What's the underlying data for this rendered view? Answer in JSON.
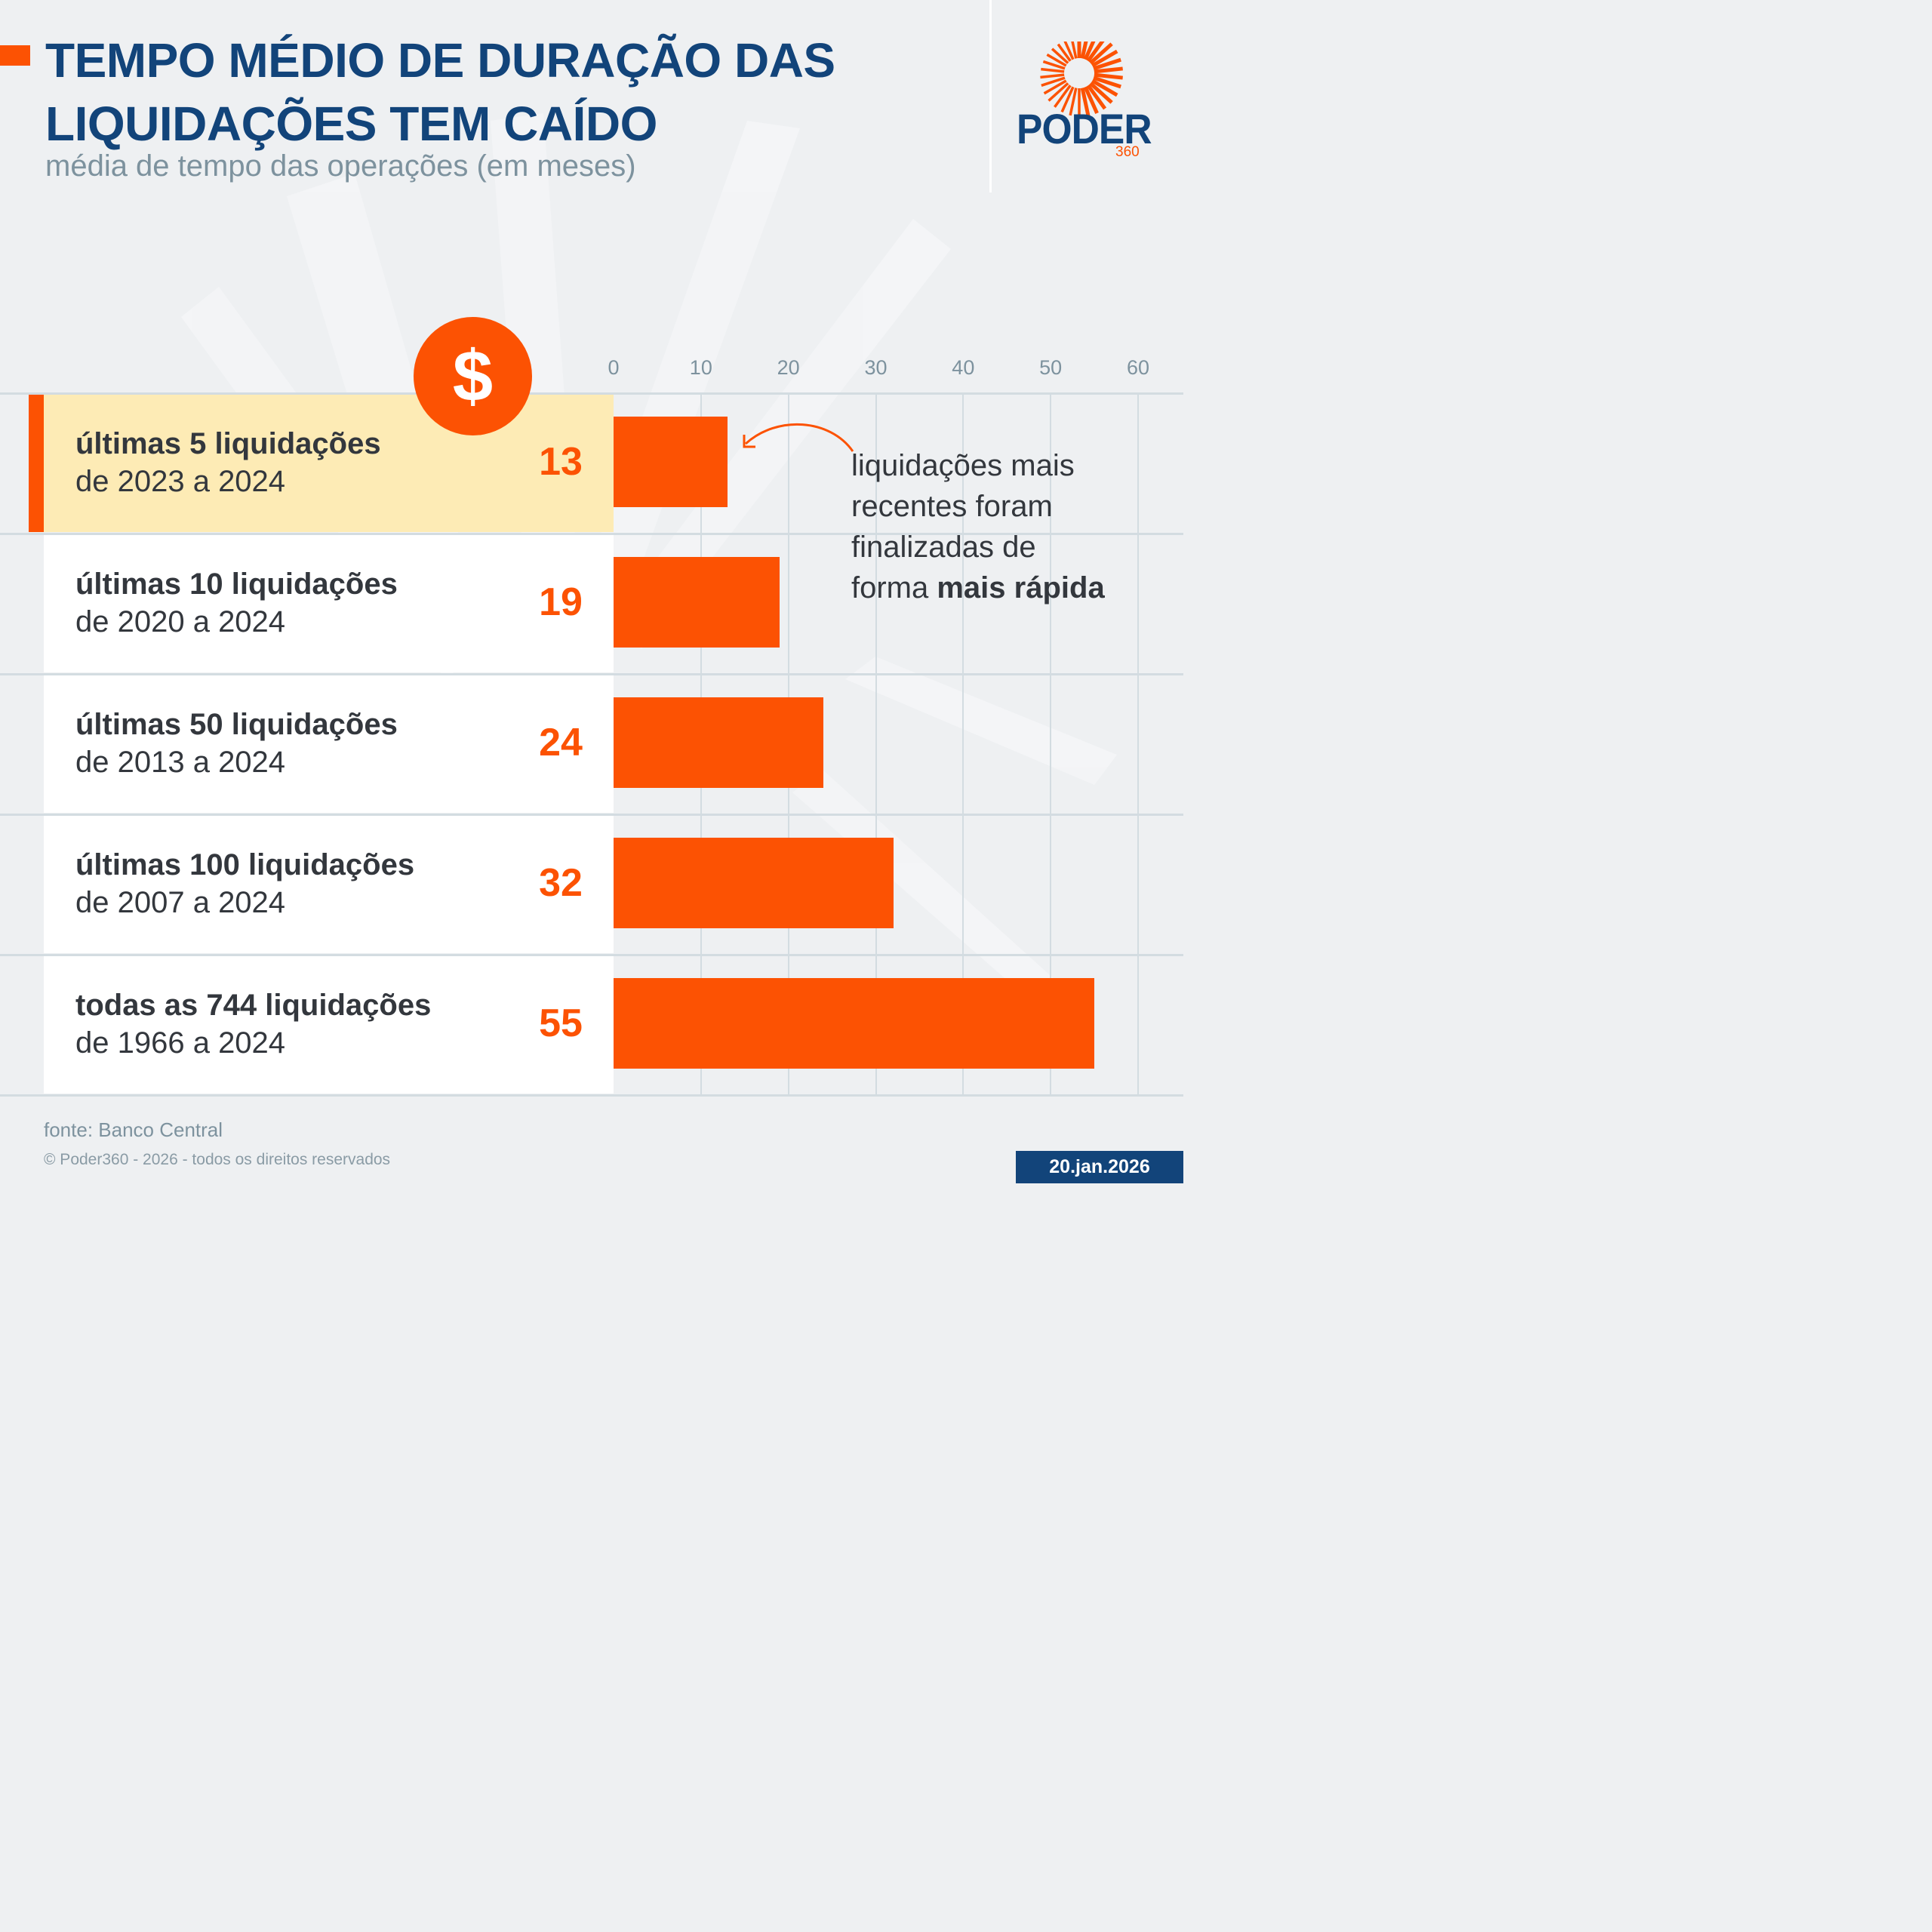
{
  "header": {
    "title_line1": "TEMPO MÉDIO DE DURAÇÃO DAS",
    "title_line2": "LIQUIDAÇÕES TEM CAÍDO",
    "subtitle": "média de tempo das operações (em meses)"
  },
  "logo": {
    "word": "PODER",
    "number": "360",
    "icon": "sunburst-icon"
  },
  "icons": {
    "dollar_symbol": "$",
    "dollar_icon": "dollar-icon"
  },
  "colors": {
    "accent": "#fc5203",
    "brand_blue": "#12447a",
    "highlight_row": "#fdebb5",
    "text_dark": "#33373d",
    "text_muted": "#7d929e"
  },
  "chart_data": {
    "type": "bar",
    "orientation": "horizontal",
    "title": "TEMPO MÉDIO DE DURAÇÃO DAS LIQUIDAÇÕES TEM CAÍDO",
    "subtitle": "média de tempo das operações (em meses)",
    "xlabel": "",
    "ylabel": "",
    "xlim": [
      0,
      60
    ],
    "ticks": [
      0,
      10,
      20,
      30,
      40,
      50,
      60
    ],
    "tick_labels": [
      "0",
      "10",
      "20",
      "30",
      "40",
      "50",
      "60"
    ],
    "grid": true,
    "axis_position": "top",
    "categories": [
      {
        "bold": "últimas 5 liquidações",
        "range": "de 2023 a 2024",
        "highlight": true
      },
      {
        "bold": "últimas 10 liquidações",
        "range": "de 2020 a 2024",
        "highlight": false
      },
      {
        "bold": "últimas 50 liquidações",
        "range": "de 2013 a 2024",
        "highlight": false
      },
      {
        "bold": "últimas 100 liquidações",
        "range": "de 2007 a 2024",
        "highlight": false
      },
      {
        "bold": "todas as 744 liquidações",
        "range": "de 1966 a 2024",
        "highlight": false
      }
    ],
    "values": [
      13,
      19,
      24,
      32,
      55
    ],
    "value_labels": [
      "13",
      "19",
      "24",
      "32",
      "55"
    ],
    "annotation": {
      "target_category_index": 0,
      "text_regular": "liquidações mais recentes foram finalizadas de forma",
      "lines": [
        "liquidações mais",
        "recentes foram",
        "finalizadas de",
        "forma "
      ],
      "text_bold": "mais rápida"
    }
  },
  "footer": {
    "source": "fonte: Banco Central",
    "copyright": "© Poder360 - 2026 - todos os direitos reservados",
    "date": "20.jan.2026"
  }
}
